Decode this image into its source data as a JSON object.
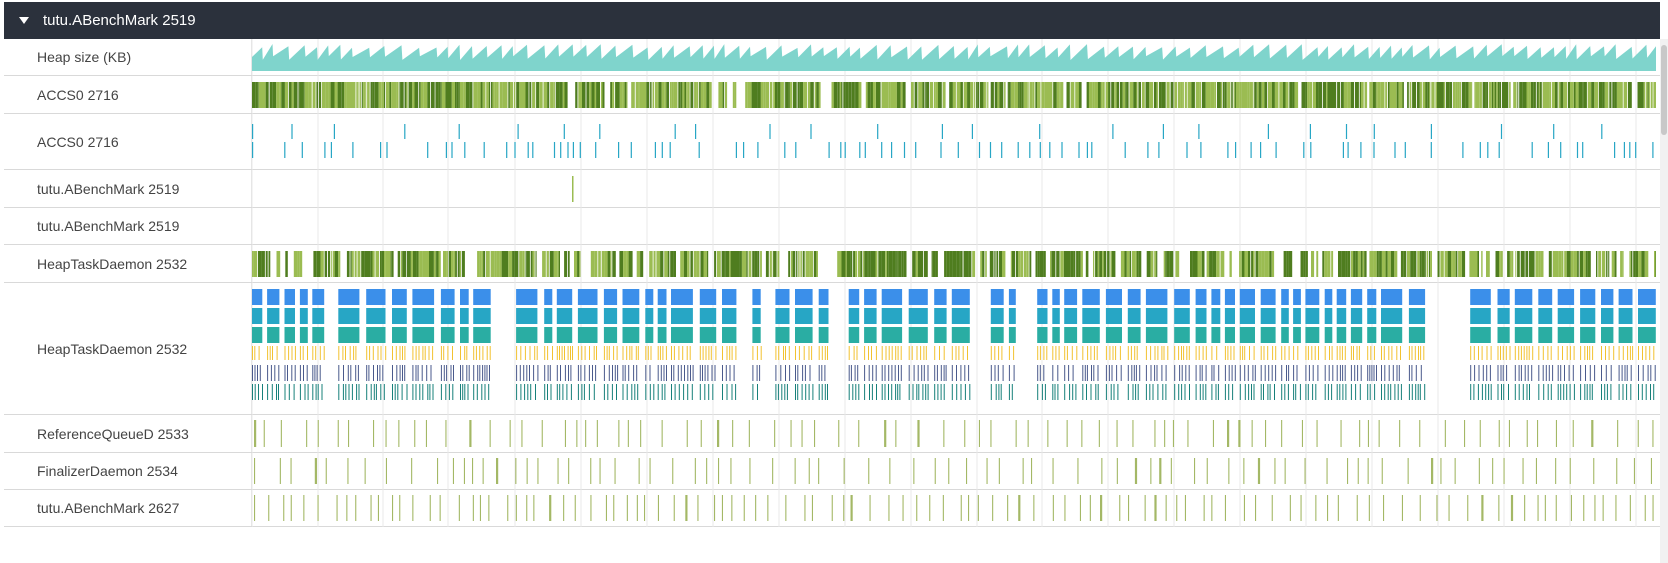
{
  "process": {
    "title": "tutu.ABenchMark 2519",
    "expanded": true
  },
  "tracks": [
    {
      "label": "Heap size (KB)",
      "kind": "heap"
    },
    {
      "label": "ACCS0 2716",
      "kind": "dense"
    },
    {
      "label": "ACCS0 2716",
      "kind": "slices2"
    },
    {
      "label": "tutu.ABenchMark 2519",
      "kind": "single"
    },
    {
      "label": "tutu.ABenchMark 2519",
      "kind": "empty"
    },
    {
      "label": "HeapTaskDaemon 2532",
      "kind": "dense"
    },
    {
      "label": "HeapTaskDaemon 2532",
      "kind": "slices6"
    },
    {
      "label": "ReferenceQueueD 2533",
      "kind": "ticks"
    },
    {
      "label": "FinalizerDaemon 2534",
      "kind": "ticks"
    },
    {
      "label": "tutu.ABenchMark 2627",
      "kind": "ticks"
    }
  ],
  "colors": {
    "header_bg": "#2b313c",
    "heap_fill": "#7fd4cc",
    "heap_stroke": "#4fb8ae",
    "dense_light": "#9bbc52",
    "dense_dark": "#4f7d1f",
    "slice_blue": "#3b8fea",
    "slice_teal": "#27a6c5",
    "slice_sea": "#2aada3",
    "slice_yellow": "#f2c230",
    "slice_navy": "#4a5a8c",
    "slice_green": "#17807a",
    "tick_olive": "#a4b866",
    "grid": "#e8e8e8"
  }
}
